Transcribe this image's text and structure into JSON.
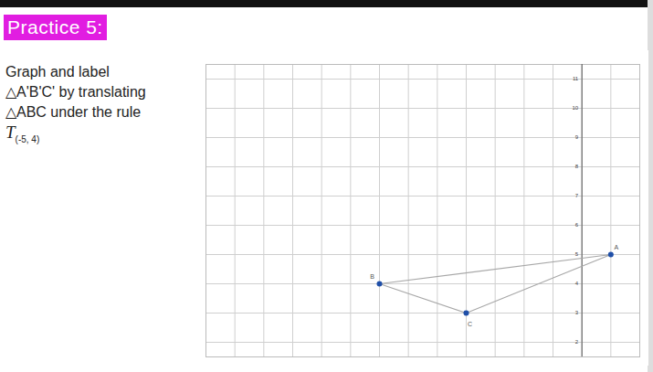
{
  "heading": "Practice 5:",
  "instructions": [
    "Graph and label",
    "△A'B'C' by translating",
    "△ABC under the rule"
  ],
  "rule_symbol": "T",
  "rule_subscript": "(-5, 4)",
  "chart_data": {
    "type": "scatter",
    "x": [
      1,
      -7,
      -4
    ],
    "values": [
      5,
      4,
      3
    ],
    "point_labels": [
      "A",
      "B",
      "C"
    ],
    "color": "#1f4fa8",
    "marker": "circle",
    "xlim": [
      -13,
      2
    ],
    "ylim": [
      1.5,
      11.5
    ],
    "xticks": [
      -13,
      -12,
      -11,
      -10,
      -9,
      -8,
      -7,
      -6,
      -5,
      -4,
      -3,
      -2,
      -1,
      0,
      1,
      2
    ],
    "yticks": [
      2,
      3,
      4,
      5,
      6,
      7,
      8,
      9,
      10,
      11
    ],
    "grid": true,
    "tick_labels": "y"
  }
}
